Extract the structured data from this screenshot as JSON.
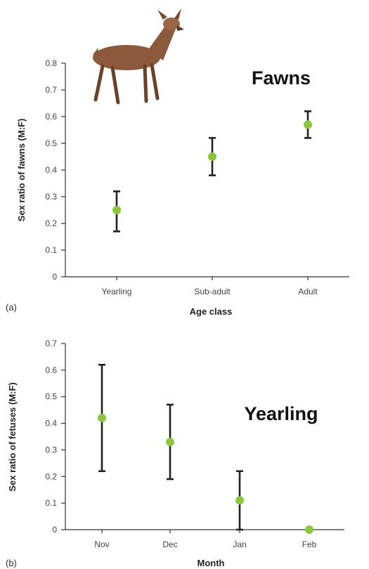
{
  "chart_data": [
    {
      "type": "scatter",
      "panel_label": "(a)",
      "annotation": "Fawns",
      "xlabel": "Age class",
      "ylabel": "Sex ratio of fawns (M:F)",
      "ylim": [
        0,
        0.8
      ],
      "yticks": [
        0,
        0.1,
        0.2,
        0.3,
        0.4,
        0.5,
        0.6,
        0.7,
        0.8
      ],
      "ytick_labels": [
        "0",
        "0.1",
        "0.2",
        "0.3",
        "0.4",
        "0.5",
        "0.6",
        "0.7",
        "0.8"
      ],
      "categories": [
        "Yearling",
        "Sub-adult",
        "Adult"
      ],
      "values": [
        0.25,
        0.45,
        0.57
      ],
      "error_low": [
        0.17,
        0.38,
        0.52
      ],
      "error_high": [
        0.32,
        0.52,
        0.62
      ],
      "point_color": "#8cc63f",
      "image": "deer-illustration"
    },
    {
      "type": "scatter",
      "panel_label": "(b)",
      "annotation": "Yearling",
      "xlabel": "Month",
      "ylabel": "Sex ratio of fetuses (M:F)",
      "ylim": [
        0,
        0.7
      ],
      "yticks": [
        0,
        0.1,
        0.2,
        0.3,
        0.4,
        0.5,
        0.6,
        0.7
      ],
      "ytick_labels": [
        "0",
        "0.1",
        "0.2",
        "0.3",
        "0.4",
        "0.5",
        "0.6",
        "0.7"
      ],
      "categories": [
        "Nov",
        "Dec",
        "Jan",
        "Feb"
      ],
      "values": [
        0.42,
        0.33,
        0.11,
        0.0
      ],
      "error_low": [
        0.22,
        0.19,
        0.0,
        null
      ],
      "error_high": [
        0.62,
        0.47,
        0.22,
        null
      ],
      "point_color": "#8cc63f"
    }
  ]
}
